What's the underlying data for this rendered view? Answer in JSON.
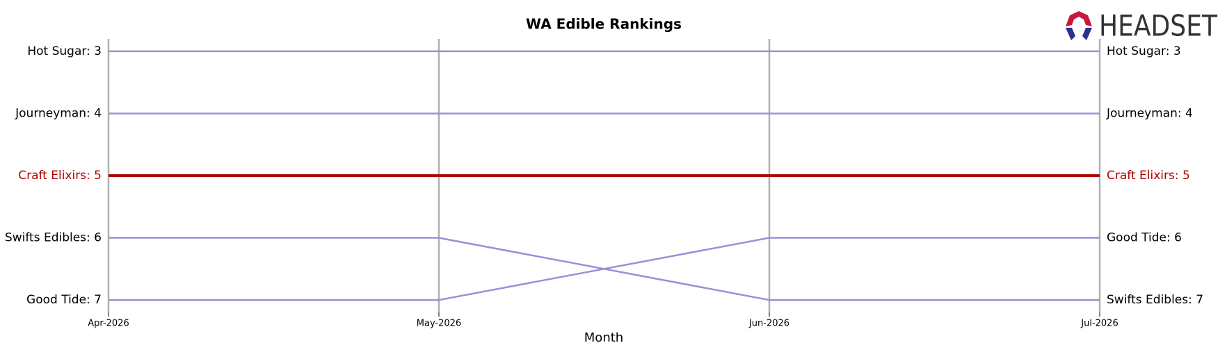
{
  "logo": "HEADSET",
  "chart_data": {
    "type": "bump",
    "title": "WA Edible Rankings",
    "x_label": "Month",
    "categories": [
      "Apr-2026",
      "May-2026",
      "Jun-2026",
      "Jul-2026"
    ],
    "ylim": [
      7.2,
      2.8
    ],
    "series": [
      {
        "start_label": "Hot Sugar: 3",
        "end_label": "Hot Sugar: 3",
        "color": "#9b8fd9",
        "values": [
          3,
          3,
          3,
          3
        ]
      },
      {
        "start_label": "Journeyman: 4",
        "end_label": "Journeyman: 4",
        "color": "#9b8fd9",
        "values": [
          4,
          4,
          4,
          4
        ]
      },
      {
        "start_label": "Craft Elixirs: 5",
        "end_label": "Craft Elixirs: 5",
        "color": "#b00000",
        "highlight": true,
        "values": [
          5,
          5,
          5,
          5
        ]
      },
      {
        "start_label": "Swifts Edibles: 6",
        "end_label": "Swifts Edibles: 7",
        "color": "#9b8fd9",
        "values": [
          6,
          6,
          7,
          7
        ]
      },
      {
        "start_label": "Good Tide: 7",
        "end_label": "Good Tide: 6",
        "color": "#9b8fd9",
        "values": [
          7,
          7,
          6,
          6
        ]
      }
    ]
  }
}
